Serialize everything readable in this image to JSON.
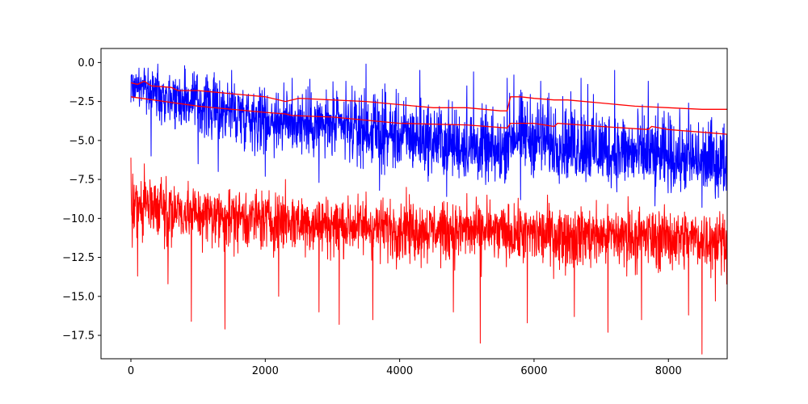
{
  "chart_data": {
    "type": "line",
    "title": "",
    "xlabel": "",
    "ylabel": "",
    "xlim": [
      -445,
      8875
    ],
    "ylim": [
      -19.0,
      0.9
    ],
    "xticks": [
      0,
      2000,
      4000,
      6000,
      8000
    ],
    "xtick_labels": [
      "0",
      "2000",
      "4000",
      "6000",
      "8000"
    ],
    "yticks": [
      0.0,
      -2.5,
      -5.0,
      -7.5,
      -10.0,
      -12.5,
      -15.0,
      -17.5
    ],
    "ytick_labels": [
      "0.0",
      "−2.5",
      "−5.0",
      "−7.5",
      "−10.0",
      "−12.5",
      "−15.0",
      "−17.5"
    ],
    "grid": false,
    "legend": "none",
    "n_points": 8870,
    "series": [
      {
        "color": "#0000ff",
        "style": "noisy",
        "trend": [
          [
            0,
            -1.3
          ],
          [
            1000,
            -2.5
          ],
          [
            2000,
            -3.6
          ],
          [
            3000,
            -4.1
          ],
          [
            4000,
            -4.7
          ],
          [
            5000,
            -5.5
          ],
          [
            5500,
            -6.0
          ],
          [
            5700,
            -4.6
          ],
          [
            6000,
            -5.0
          ],
          [
            7000,
            -5.8
          ],
          [
            8000,
            -6.2
          ],
          [
            8870,
            -6.6
          ]
        ],
        "band": [
          [
            0,
            -3.2,
            0.0
          ],
          [
            1000,
            -6.0,
            -0.1
          ],
          [
            2000,
            -6.5,
            -0.8
          ],
          [
            3000,
            -7.0,
            -1.0
          ],
          [
            4000,
            -7.8,
            -1.3
          ],
          [
            5000,
            -8.2,
            -1.8
          ],
          [
            5500,
            -8.6,
            -2.4
          ],
          [
            5700,
            -7.5,
            -0.8
          ],
          [
            6000,
            -8.0,
            -1.2
          ],
          [
            7000,
            -8.6,
            -1.6
          ],
          [
            8000,
            -9.0,
            -2.4
          ],
          [
            8870,
            -9.2,
            -2.8
          ]
        ],
        "spikes_up": [
          [
            400,
            -0.1
          ],
          [
            800,
            -0.2
          ],
          [
            1500,
            -0.5
          ],
          [
            2400,
            -1.0
          ],
          [
            3200,
            -1.2
          ],
          [
            3500,
            -0.1
          ],
          [
            4300,
            -0.5
          ],
          [
            5000,
            -1.5
          ],
          [
            5100,
            -0.6
          ],
          [
            5600,
            -1.0
          ],
          [
            5700,
            -0.8
          ],
          [
            6100,
            -1.2
          ],
          [
            6700,
            -1.0
          ],
          [
            6800,
            -1.4
          ],
          [
            7200,
            -0.5
          ],
          [
            7700,
            -1.2
          ],
          [
            8300,
            -2.6
          ]
        ],
        "spikes_down": [
          [
            300,
            -6.0
          ],
          [
            1000,
            -6.5
          ],
          [
            1300,
            -7.0
          ],
          [
            2000,
            -7.3
          ],
          [
            2800,
            -7.7
          ],
          [
            3700,
            -8.2
          ],
          [
            4700,
            -8.6
          ],
          [
            5800,
            -8.8
          ],
          [
            6800,
            -9.0
          ],
          [
            7800,
            -9.2
          ],
          [
            8500,
            -9.3
          ]
        ]
      },
      {
        "color": "#ff0000",
        "style": "noisy",
        "trend": [
          [
            0,
            -9.0
          ],
          [
            1000,
            -9.6
          ],
          [
            2000,
            -10.0
          ],
          [
            3000,
            -10.3
          ],
          [
            4000,
            -10.5
          ],
          [
            5000,
            -10.7
          ],
          [
            6000,
            -10.9
          ],
          [
            7000,
            -11.0
          ],
          [
            8000,
            -11.1
          ],
          [
            8870,
            -11.2
          ]
        ],
        "band": [
          [
            0,
            -12.0,
            -6.4
          ],
          [
            1000,
            -12.7,
            -7.3
          ],
          [
            2000,
            -13.0,
            -7.6
          ],
          [
            3000,
            -13.2,
            -8.0
          ],
          [
            4000,
            -13.6,
            -8.3
          ],
          [
            5000,
            -13.8,
            -8.6
          ],
          [
            6000,
            -14.0,
            -8.6
          ],
          [
            7000,
            -14.1,
            -8.7
          ],
          [
            8000,
            -14.2,
            -8.8
          ],
          [
            8870,
            -14.3,
            -9.0
          ]
        ],
        "spikes_up": [
          [
            0,
            -6.1
          ],
          [
            200,
            -6.5
          ],
          [
            2300,
            -7.5
          ],
          [
            3500,
            -8.3
          ],
          [
            4100,
            -8.0
          ],
          [
            5000,
            -8.4
          ],
          [
            5300,
            -8.5
          ],
          [
            6200,
            -8.5
          ],
          [
            7400,
            -8.6
          ]
        ],
        "spikes_down": [
          [
            100,
            -13.7
          ],
          [
            550,
            -14.2
          ],
          [
            900,
            -16.6
          ],
          [
            1400,
            -17.1
          ],
          [
            2200,
            -15.0
          ],
          [
            2800,
            -16.0
          ],
          [
            3100,
            -16.8
          ],
          [
            3600,
            -16.5
          ],
          [
            4100,
            -16.2
          ],
          [
            4800,
            -16.0
          ],
          [
            5200,
            -18.0
          ],
          [
            5300,
            -16.3
          ],
          [
            5900,
            -16.7
          ],
          [
            6600,
            -16.3
          ],
          [
            7100,
            -17.3
          ],
          [
            7600,
            -16.5
          ],
          [
            8300,
            -16.2
          ],
          [
            8500,
            -18.7
          ],
          [
            8700,
            -15.3
          ]
        ]
      },
      {
        "color": "#ff0000",
        "style": "step",
        "points": [
          [
            0,
            -1.3
          ],
          [
            100,
            -1.4
          ],
          [
            200,
            -1.2
          ],
          [
            300,
            -1.5
          ],
          [
            600,
            -1.6
          ],
          [
            700,
            -1.8
          ],
          [
            1000,
            -1.8
          ],
          [
            1500,
            -2.0
          ],
          [
            2000,
            -2.2
          ],
          [
            2300,
            -2.5
          ],
          [
            2500,
            -2.3
          ],
          [
            3000,
            -2.4
          ],
          [
            3500,
            -2.5
          ],
          [
            4000,
            -2.7
          ],
          [
            4500,
            -2.9
          ],
          [
            5000,
            -2.9
          ],
          [
            5500,
            -3.1
          ],
          [
            5600,
            -3.1
          ],
          [
            5650,
            -2.2
          ],
          [
            5800,
            -2.2
          ],
          [
            6000,
            -2.3
          ],
          [
            6300,
            -2.4
          ],
          [
            6500,
            -2.4
          ],
          [
            7000,
            -2.6
          ],
          [
            7500,
            -2.8
          ],
          [
            8000,
            -2.9
          ],
          [
            8500,
            -3.0
          ],
          [
            8870,
            -3.0
          ]
        ]
      },
      {
        "color": "#ff0000",
        "style": "step",
        "points": [
          [
            0,
            -2.2
          ],
          [
            500,
            -2.5
          ],
          [
            1000,
            -2.8
          ],
          [
            2000,
            -3.2
          ],
          [
            2300,
            -3.3
          ],
          [
            2400,
            -3.4
          ],
          [
            3000,
            -3.5
          ],
          [
            4000,
            -3.9
          ],
          [
            5000,
            -4.0
          ],
          [
            5600,
            -4.2
          ],
          [
            5650,
            -3.9
          ],
          [
            6000,
            -3.9
          ],
          [
            6300,
            -4.1
          ],
          [
            6350,
            -3.9
          ],
          [
            7000,
            -4.1
          ],
          [
            7700,
            -4.3
          ],
          [
            7750,
            -4.1
          ],
          [
            8000,
            -4.3
          ],
          [
            8870,
            -4.6
          ]
        ]
      }
    ]
  }
}
